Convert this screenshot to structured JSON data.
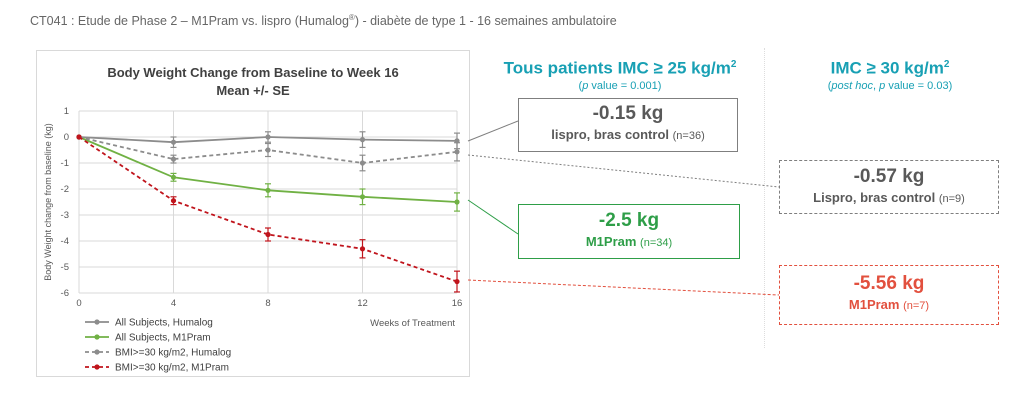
{
  "header": {
    "text_main": "CT041 : Etude de Phase 2 – M1Pram vs. lispro (Humalog",
    "text_reg": "®",
    "text_end": ") - diabète de type 1 - 16 semaines ambulatoire"
  },
  "columns": {
    "all": {
      "title_main": "Tous patients IMC ≥ 25 kg/m",
      "title_sup": "2",
      "pvalue_italic": "p",
      "pvalue_rest": " value = 0.001)",
      "pvalue_open": "("
    },
    "bmi30": {
      "title_main": "IMC ≥ 30 kg/m",
      "title_sup": "2",
      "posthoc_open": "(",
      "posthoc_italic": "post hoc",
      "posthoc_mid": ", ",
      "p_italic": "p",
      "posthoc_rest": " value = 0.03)"
    }
  },
  "boxes": {
    "lispro_all": {
      "value": "-0.15 kg",
      "label": "lispro, bras control",
      "n": "(n=36)"
    },
    "m1pram_all": {
      "value": "-2.5 kg",
      "label": "M1Pram",
      "n": "(n=34)"
    },
    "lispro_bmi30": {
      "value": "-0.57 kg",
      "label": "Lispro, bras control",
      "n": "(n=9)"
    },
    "m1pram_bmi30": {
      "value": "-5.56 kg",
      "label": "M1Pram",
      "n": "(n=7)"
    }
  },
  "colors": {
    "teal": "#18a0b4",
    "gray": "#7f7f7f",
    "green": "#2e9e48",
    "red": "#e2503e",
    "series_gray": "#8c8c8c",
    "series_green": "#70b144",
    "series_red": "#c0141c"
  },
  "chart_data": {
    "type": "line",
    "title": [
      "Body Weight Change from Baseline to Week 16",
      "Mean +/- SE"
    ],
    "xlabel": "Weeks of Treatment",
    "ylabel": "Body Weight change from baseline (kg)",
    "x": [
      0,
      4,
      8,
      12,
      16
    ],
    "x_ticks": [
      0,
      4,
      8,
      12,
      16
    ],
    "ylim": [
      -6,
      1
    ],
    "y_ticks": [
      1,
      0,
      -1,
      -2,
      -3,
      -4,
      -5,
      -6
    ],
    "grid": true,
    "legend_position": "bottom-left",
    "series": [
      {
        "name": "All Subjects, Humalog",
        "values": [
          0,
          -0.2,
          0.0,
          -0.1,
          -0.15
        ],
        "err": [
          0,
          0.2,
          0.2,
          0.3,
          0.3
        ],
        "color": "#8c8c8c",
        "dashed": false
      },
      {
        "name": "All Subjects, M1Pram",
        "values": [
          0,
          -1.55,
          -2.05,
          -2.3,
          -2.5
        ],
        "err": [
          0,
          0.15,
          0.25,
          0.3,
          0.35
        ],
        "color": "#70b144",
        "dashed": false
      },
      {
        "name": "BMI>=30 kg/m2, Humalog",
        "values": [
          0,
          -0.85,
          -0.5,
          -1.0,
          -0.57
        ],
        "err": [
          0,
          0.15,
          0.25,
          0.3,
          0.35
        ],
        "color": "#8c8c8c",
        "dashed": true
      },
      {
        "name": "BMI>=30 kg/m2, M1Pram",
        "values": [
          0,
          -2.45,
          -3.75,
          -4.3,
          -5.56
        ],
        "err": [
          0,
          0.15,
          0.25,
          0.35,
          0.4
        ],
        "color": "#c0141c",
        "dashed": true
      }
    ]
  }
}
